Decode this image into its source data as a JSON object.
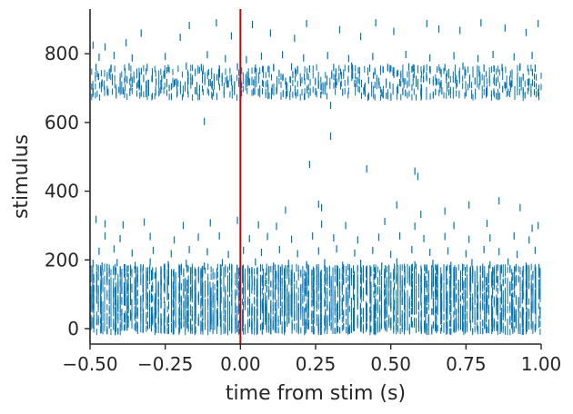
{
  "chart_data": {
    "type": "scatter",
    "marker": "vertical-tick",
    "title": "",
    "xlabel": "time from stim (s)",
    "ylabel": "stimulus",
    "xlim": [
      -0.5,
      1.0
    ],
    "ylim": [
      -45,
      930
    ],
    "xticks": [
      -0.5,
      -0.25,
      0.0,
      0.25,
      0.5,
      0.75,
      1.0
    ],
    "xtick_labels": [
      "−0.50",
      "−0.25",
      "0.00",
      "0.25",
      "0.50",
      "0.75",
      "1.00"
    ],
    "yticks": [
      0,
      200,
      400,
      600,
      800
    ],
    "ytick_labels": [
      "0",
      "200",
      "400",
      "600",
      "800"
    ],
    "grid": false,
    "spines": [
      "left",
      "bottom"
    ],
    "series_color": "#0072b2",
    "stim_line": {
      "x": 0.0,
      "color": "#cc0000"
    },
    "points": [
      [
        -0.12,
        603
      ],
      [
        0.3,
        560
      ],
      [
        0.23,
        478
      ],
      [
        0.42,
        465
      ],
      [
        0.58,
        458
      ],
      [
        0.59,
        443
      ],
      [
        0.26,
        362
      ],
      [
        0.27,
        352
      ],
      [
        0.76,
        360
      ],
      [
        0.86,
        372
      ],
      [
        0.68,
        342
      ],
      [
        0.93,
        352
      ],
      [
        0.52,
        360
      ],
      [
        0.15,
        345
      ],
      [
        0.6,
        333
      ],
      [
        -0.08,
        890
      ],
      [
        0.04,
        885
      ],
      [
        0.22,
        888
      ],
      [
        0.45,
        890
      ],
      [
        0.62,
        888
      ],
      [
        0.8,
        890
      ],
      [
        0.99,
        888
      ],
      [
        -0.17,
        882
      ],
      [
        -0.33,
        860
      ],
      [
        -0.49,
        825
      ],
      [
        -0.45,
        820
      ],
      [
        -0.38,
        832
      ],
      [
        -0.2,
        848
      ],
      [
        -0.03,
        852
      ],
      [
        0.1,
        860
      ],
      [
        0.18,
        845
      ],
      [
        0.33,
        870
      ],
      [
        0.4,
        850
      ],
      [
        0.51,
        865
      ],
      [
        0.66,
        872
      ],
      [
        0.73,
        868
      ],
      [
        0.88,
        875
      ],
      [
        0.95,
        862
      ],
      [
        -0.47,
        790
      ],
      [
        -0.42,
        795
      ],
      [
        -0.36,
        788
      ],
      [
        -0.25,
        792
      ],
      [
        -0.11,
        797
      ],
      [
        -0.05,
        786
      ],
      [
        0.02,
        783
      ],
      [
        0.07,
        793
      ],
      [
        0.14,
        797
      ],
      [
        0.21,
        788
      ],
      [
        0.29,
        795
      ],
      [
        0.36,
        786
      ],
      [
        0.44,
        792
      ],
      [
        0.55,
        798
      ],
      [
        0.63,
        788
      ],
      [
        0.71,
        794
      ],
      [
        0.79,
        786
      ],
      [
        0.84,
        798
      ],
      [
        0.91,
        791
      ],
      [
        0.97,
        795
      ],
      [
        -0.48,
        760
      ],
      [
        -0.43,
        758
      ],
      [
        -0.37,
        762
      ],
      [
        -0.31,
        760
      ],
      [
        -0.24,
        758
      ],
      [
        -0.18,
        764
      ],
      [
        -0.13,
        760
      ],
      [
        -0.07,
        756
      ],
      [
        -0.01,
        762
      ],
      [
        0.05,
        758
      ],
      [
        0.11,
        760
      ],
      [
        0.17,
        762
      ],
      [
        0.23,
        756
      ],
      [
        0.31,
        760
      ],
      [
        0.37,
        764
      ],
      [
        0.43,
        758
      ],
      [
        0.49,
        760
      ],
      [
        0.56,
        762
      ],
      [
        0.61,
        756
      ],
      [
        0.68,
        760
      ],
      [
        0.74,
        764
      ],
      [
        0.81,
        758
      ],
      [
        0.87,
        760
      ],
      [
        0.93,
        762
      ],
      [
        0.98,
        758
      ],
      [
        -0.46,
        715
      ],
      [
        -0.4,
        720
      ],
      [
        -0.34,
        712
      ],
      [
        -0.28,
        718
      ],
      [
        -0.22,
        714
      ],
      [
        -0.16,
        720
      ],
      [
        -0.1,
        716
      ],
      [
        -0.04,
        712
      ],
      [
        0.03,
        718
      ],
      [
        0.09,
        714
      ],
      [
        0.15,
        720
      ],
      [
        0.2,
        716
      ],
      [
        0.26,
        712
      ],
      [
        0.32,
        718
      ],
      [
        0.38,
        714
      ],
      [
        0.46,
        720
      ],
      [
        0.53,
        716
      ],
      [
        0.59,
        712
      ],
      [
        0.65,
        718
      ],
      [
        0.72,
        714
      ],
      [
        0.78,
        720
      ],
      [
        0.85,
        716
      ],
      [
        0.9,
        712
      ],
      [
        0.96,
        718
      ],
      [
        -0.49,
        690
      ],
      [
        -0.44,
        688
      ],
      [
        -0.39,
        692
      ],
      [
        -0.33,
        686
      ],
      [
        -0.27,
        690
      ],
      [
        -0.21,
        688
      ],
      [
        -0.15,
        692
      ],
      [
        -0.09,
        686
      ],
      [
        -0.02,
        690
      ],
      [
        0.06,
        688
      ],
      [
        0.12,
        692
      ],
      [
        0.19,
        686
      ],
      [
        0.25,
        690
      ],
      [
        0.34,
        688
      ],
      [
        0.41,
        692
      ],
      [
        0.47,
        686
      ],
      [
        0.54,
        690
      ],
      [
        0.6,
        688
      ],
      [
        0.67,
        692
      ],
      [
        0.75,
        686
      ],
      [
        0.82,
        690
      ],
      [
        0.89,
        688
      ],
      [
        0.94,
        692
      ],
      [
        0.99,
        686
      ],
      [
        0.3,
        650
      ],
      [
        -0.48,
        318
      ],
      [
        -0.45,
        305
      ],
      [
        -0.39,
        302
      ],
      [
        -0.32,
        310
      ],
      [
        -0.19,
        300
      ],
      [
        -0.1,
        308
      ],
      [
        -0.01,
        315
      ],
      [
        0.06,
        302
      ],
      [
        0.12,
        298
      ],
      [
        0.27,
        304
      ],
      [
        0.35,
        300
      ],
      [
        0.48,
        312
      ],
      [
        0.58,
        298
      ],
      [
        0.71,
        300
      ],
      [
        0.82,
        306
      ],
      [
        0.97,
        292
      ],
      [
        0.99,
        300
      ],
      [
        -0.45,
        270
      ],
      [
        -0.4,
        262
      ],
      [
        -0.3,
        268
      ],
      [
        -0.22,
        258
      ],
      [
        -0.14,
        266
      ],
      [
        -0.07,
        270
      ],
      [
        0.03,
        262
      ],
      [
        0.09,
        268
      ],
      [
        0.17,
        260
      ],
      [
        0.24,
        270
      ],
      [
        0.31,
        264
      ],
      [
        0.39,
        258
      ],
      [
        0.46,
        266
      ],
      [
        0.53,
        270
      ],
      [
        0.61,
        262
      ],
      [
        0.68,
        268
      ],
      [
        0.76,
        260
      ],
      [
        0.83,
        264
      ],
      [
        0.91,
        270
      ],
      [
        0.96,
        258
      ],
      [
        -0.47,
        225
      ],
      [
        -0.42,
        232
      ],
      [
        -0.36,
        220
      ],
      [
        -0.29,
        228
      ],
      [
        -0.23,
        218
      ],
      [
        -0.17,
        230
      ],
      [
        -0.11,
        224
      ],
      [
        -0.04,
        216
      ],
      [
        0.01,
        228
      ],
      [
        0.07,
        222
      ],
      [
        0.13,
        230
      ],
      [
        0.19,
        218
      ],
      [
        0.26,
        226
      ],
      [
        0.32,
        232
      ],
      [
        0.38,
        220
      ],
      [
        0.44,
        228
      ],
      [
        0.5,
        216
      ],
      [
        0.57,
        230
      ],
      [
        0.63,
        222
      ],
      [
        0.69,
        226
      ],
      [
        0.75,
        218
      ],
      [
        0.81,
        230
      ],
      [
        0.86,
        224
      ],
      [
        0.92,
        216
      ],
      [
        0.98,
        228
      ],
      [
        -0.49,
        190
      ],
      [
        -0.46,
        182
      ],
      [
        -0.41,
        192
      ],
      [
        -0.35,
        184
      ],
      [
        -0.3,
        194
      ],
      [
        -0.24,
        186
      ],
      [
        -0.18,
        190
      ],
      [
        -0.12,
        182
      ],
      [
        -0.06,
        192
      ],
      [
        0.0,
        186
      ],
      [
        0.05,
        194
      ],
      [
        0.11,
        182
      ],
      [
        0.16,
        190
      ],
      [
        0.22,
        186
      ],
      [
        0.28,
        192
      ],
      [
        0.34,
        184
      ],
      [
        0.4,
        190
      ],
      [
        0.47,
        182
      ],
      [
        0.52,
        194
      ],
      [
        0.58,
        186
      ],
      [
        0.64,
        190
      ],
      [
        0.7,
        184
      ],
      [
        0.77,
        192
      ],
      [
        0.83,
        186
      ],
      [
        0.89,
        194
      ],
      [
        0.95,
        182
      ]
    ]
  }
}
